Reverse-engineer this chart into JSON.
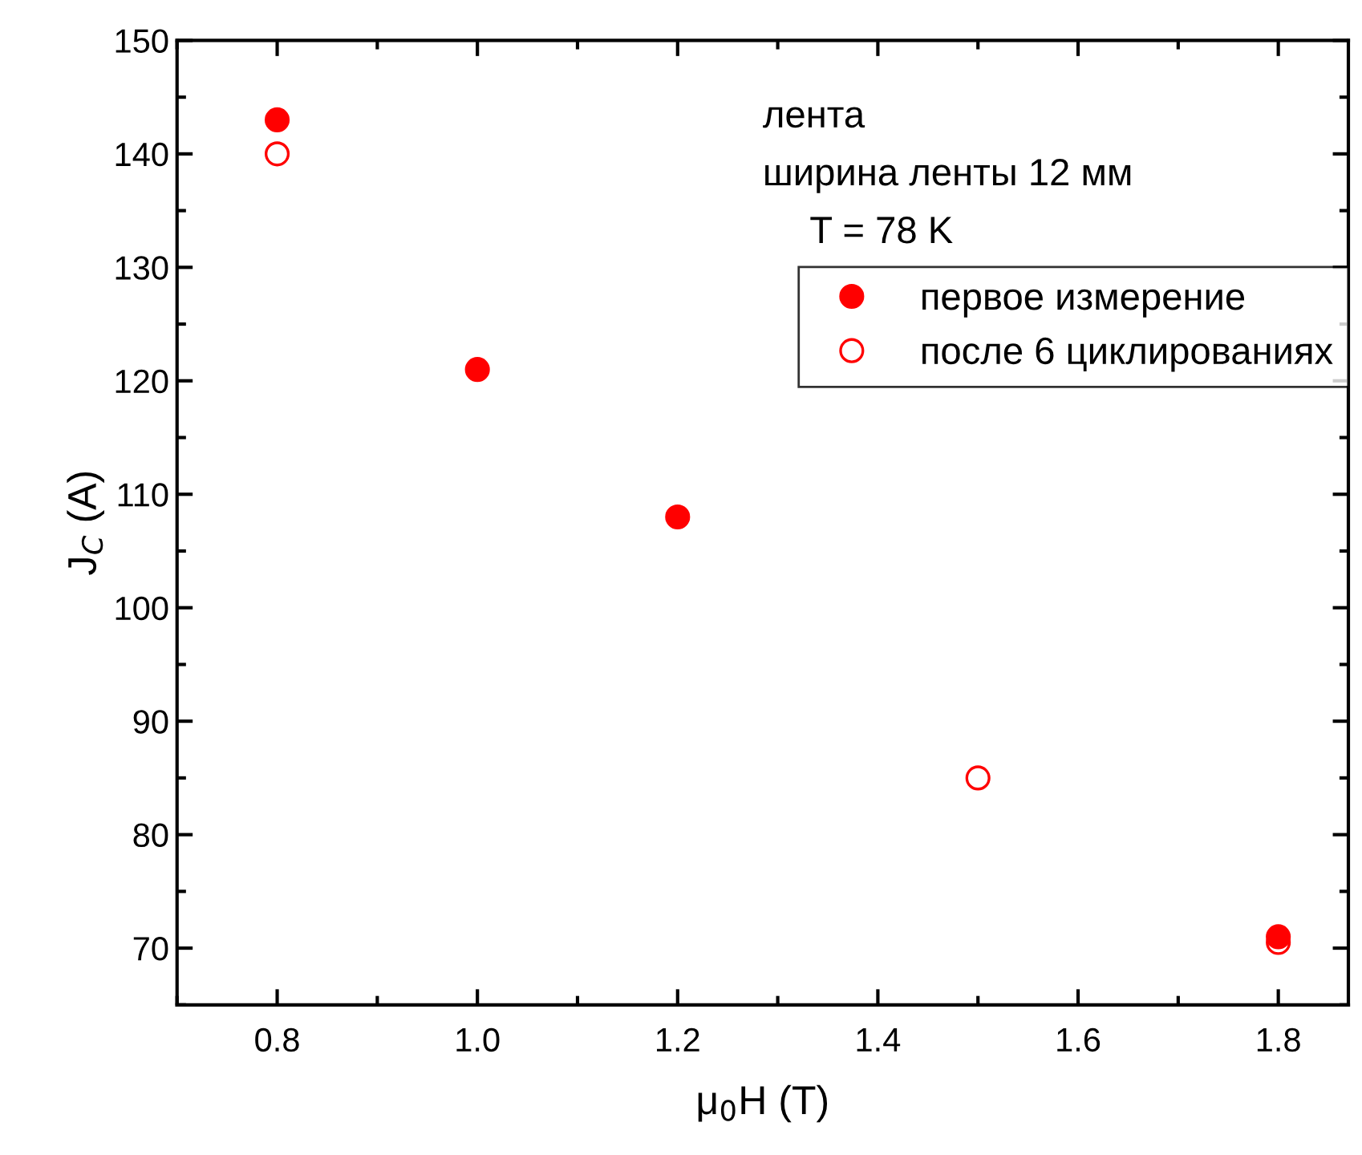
{
  "chart_data": {
    "type": "scatter",
    "xlabel": "μ$_{0}$H (T)",
    "ylabel": "J$_{C}$ (A)",
    "annotations": [
      "лента",
      "ширина ленты 12 мм",
      "T = 78 K"
    ],
    "x": [
      0.8,
      1.0,
      1.2,
      1.5,
      1.8
    ],
    "series": [
      {
        "name": "первое измерение",
        "color": "#ff0000",
        "values": [
          143,
          121,
          108,
          null,
          71
        ]
      },
      {
        "name": "после 6 циклированиях",
        "color": "#ff0000",
        "values": [
          140,
          null,
          null,
          85,
          70.5
        ]
      }
    ],
    "xlim": [
      0.7,
      1.87
    ],
    "xticks": [
      {
        "value": 0.8,
        "label": "0.8"
      },
      {
        "value": 1.0,
        "label": "1.0"
      },
      {
        "value": 1.2,
        "label": "1.2"
      },
      {
        "value": 1.4,
        "label": "1.4"
      },
      {
        "value": 1.6,
        "label": "1.6"
      },
      {
        "value": 1.8,
        "label": "1.8"
      }
    ],
    "ylim": [
      65,
      150
    ],
    "yticks": [
      70,
      80,
      90,
      100,
      110,
      120,
      130,
      140,
      150
    ],
    "legend": "upper right",
    "marker": "circle",
    "grid": false
  }
}
